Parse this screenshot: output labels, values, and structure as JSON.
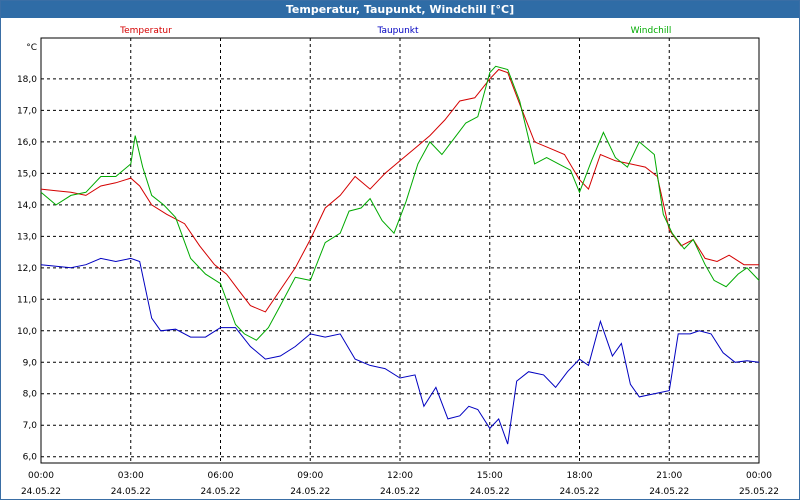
{
  "window": {
    "title": "Temperatur, Taupunkt, Windchill [°C]"
  },
  "chart_data": {
    "type": "line",
    "title": "Temperatur, Taupunkt, Windchill [°C]",
    "ylabel": "°C",
    "ylim": [
      5.8,
      19.3
    ],
    "xlim": [
      0,
      24
    ],
    "grid": true,
    "y_ticks": [
      "6,0",
      "7,0",
      "8,0",
      "9,0",
      "10,0",
      "11,0",
      "12,0",
      "13,0",
      "14,0",
      "15,0",
      "16,0",
      "17,0",
      "18,0"
    ],
    "x_ticks": [
      {
        "time": "00:00",
        "date": "24.05.22"
      },
      {
        "time": "03:00",
        "date": "24.05.22"
      },
      {
        "time": "06:00",
        "date": "24.05.22"
      },
      {
        "time": "09:00",
        "date": "24.05.22"
      },
      {
        "time": "12:00",
        "date": "24.05.22"
      },
      {
        "time": "15:00",
        "date": "24.05.22"
      },
      {
        "time": "18:00",
        "date": "24.05.22"
      },
      {
        "time": "21:00",
        "date": "24.05.22"
      },
      {
        "time": "00:00",
        "date": "25.05.22"
      }
    ],
    "series": [
      {
        "name": "Temperatur",
        "color": "#d40000",
        "points": [
          [
            0,
            14.5
          ],
          [
            0.5,
            14.45
          ],
          [
            1,
            14.4
          ],
          [
            1.5,
            14.3
          ],
          [
            2,
            14.6
          ],
          [
            2.5,
            14.7
          ],
          [
            3,
            14.85
          ],
          [
            3.3,
            14.6
          ],
          [
            3.7,
            14.0
          ],
          [
            4.2,
            13.7
          ],
          [
            4.8,
            13.4
          ],
          [
            5.3,
            12.7
          ],
          [
            5.8,
            12.1
          ],
          [
            6.2,
            11.8
          ],
          [
            6.6,
            11.3
          ],
          [
            7.0,
            10.8
          ],
          [
            7.5,
            10.6
          ],
          [
            8.0,
            11.3
          ],
          [
            8.5,
            12.0
          ],
          [
            9.0,
            12.9
          ],
          [
            9.5,
            13.9
          ],
          [
            10.0,
            14.3
          ],
          [
            10.5,
            14.9
          ],
          [
            11.0,
            14.5
          ],
          [
            11.5,
            15.0
          ],
          [
            12.0,
            15.4
          ],
          [
            12.5,
            15.8
          ],
          [
            13.0,
            16.2
          ],
          [
            13.5,
            16.7
          ],
          [
            14.0,
            17.3
          ],
          [
            14.5,
            17.4
          ],
          [
            15.0,
            18.0
          ],
          [
            15.3,
            18.3
          ],
          [
            15.6,
            18.2
          ],
          [
            16.0,
            17.2
          ],
          [
            16.5,
            16.0
          ],
          [
            17.0,
            15.8
          ],
          [
            17.5,
            15.6
          ],
          [
            18.0,
            14.8
          ],
          [
            18.3,
            14.5
          ],
          [
            18.7,
            15.6
          ],
          [
            19.2,
            15.4
          ],
          [
            19.7,
            15.3
          ],
          [
            20.2,
            15.2
          ],
          [
            20.6,
            14.9
          ],
          [
            21.0,
            13.2
          ],
          [
            21.4,
            12.7
          ],
          [
            21.8,
            12.9
          ],
          [
            22.2,
            12.3
          ],
          [
            22.6,
            12.2
          ],
          [
            23.0,
            12.4
          ],
          [
            23.5,
            12.1
          ],
          [
            24,
            12.1
          ]
        ]
      },
      {
        "name": "Taupunkt",
        "color": "#0000c0",
        "points": [
          [
            0,
            12.1
          ],
          [
            0.5,
            12.05
          ],
          [
            1,
            12.0
          ],
          [
            1.5,
            12.1
          ],
          [
            2,
            12.3
          ],
          [
            2.5,
            12.2
          ],
          [
            3,
            12.3
          ],
          [
            3.3,
            12.2
          ],
          [
            3.7,
            10.4
          ],
          [
            4.0,
            10.0
          ],
          [
            4.5,
            10.05
          ],
          [
            5.0,
            9.8
          ],
          [
            5.5,
            9.8
          ],
          [
            6.0,
            10.1
          ],
          [
            6.5,
            10.1
          ],
          [
            7.0,
            9.5
          ],
          [
            7.5,
            9.1
          ],
          [
            8.0,
            9.2
          ],
          [
            8.5,
            9.5
          ],
          [
            9.0,
            9.9
          ],
          [
            9.5,
            9.8
          ],
          [
            10.0,
            9.9
          ],
          [
            10.5,
            9.1
          ],
          [
            11.0,
            8.9
          ],
          [
            11.5,
            8.8
          ],
          [
            12.0,
            8.5
          ],
          [
            12.5,
            8.6
          ],
          [
            12.8,
            7.6
          ],
          [
            13.2,
            8.2
          ],
          [
            13.6,
            7.2
          ],
          [
            14.0,
            7.3
          ],
          [
            14.3,
            7.6
          ],
          [
            14.6,
            7.5
          ],
          [
            15.0,
            6.9
          ],
          [
            15.3,
            7.2
          ],
          [
            15.6,
            6.4
          ],
          [
            15.9,
            8.4
          ],
          [
            16.3,
            8.7
          ],
          [
            16.8,
            8.6
          ],
          [
            17.2,
            8.2
          ],
          [
            17.6,
            8.7
          ],
          [
            18.0,
            9.1
          ],
          [
            18.3,
            8.9
          ],
          [
            18.7,
            10.3
          ],
          [
            19.1,
            9.2
          ],
          [
            19.4,
            9.6
          ],
          [
            19.7,
            8.3
          ],
          [
            20.0,
            7.9
          ],
          [
            20.5,
            8.0
          ],
          [
            21.0,
            8.1
          ],
          [
            21.3,
            9.9
          ],
          [
            21.7,
            9.9
          ],
          [
            22.0,
            10.0
          ],
          [
            22.4,
            9.9
          ],
          [
            22.8,
            9.3
          ],
          [
            23.2,
            9.0
          ],
          [
            23.6,
            9.05
          ],
          [
            24,
            9.0
          ]
        ]
      },
      {
        "name": "Windchill",
        "color": "#00aa00",
        "points": [
          [
            0,
            14.4
          ],
          [
            0.5,
            14.0
          ],
          [
            1,
            14.3
          ],
          [
            1.5,
            14.4
          ],
          [
            2,
            14.9
          ],
          [
            2.5,
            14.9
          ],
          [
            3,
            15.3
          ],
          [
            3.15,
            16.2
          ],
          [
            3.4,
            15.2
          ],
          [
            3.7,
            14.3
          ],
          [
            4.1,
            14.0
          ],
          [
            4.5,
            13.6
          ],
          [
            5.0,
            12.3
          ],
          [
            5.5,
            11.8
          ],
          [
            6.0,
            11.5
          ],
          [
            6.5,
            10.2
          ],
          [
            6.8,
            9.9
          ],
          [
            7.2,
            9.7
          ],
          [
            7.6,
            10.1
          ],
          [
            8.0,
            10.8
          ],
          [
            8.5,
            11.7
          ],
          [
            9.0,
            11.6
          ],
          [
            9.5,
            12.8
          ],
          [
            10.0,
            13.1
          ],
          [
            10.3,
            13.8
          ],
          [
            10.7,
            13.9
          ],
          [
            11.0,
            14.2
          ],
          [
            11.4,
            13.5
          ],
          [
            11.8,
            13.1
          ],
          [
            12.2,
            14.1
          ],
          [
            12.6,
            15.3
          ],
          [
            13.0,
            16.0
          ],
          [
            13.4,
            15.6
          ],
          [
            13.8,
            16.1
          ],
          [
            14.2,
            16.6
          ],
          [
            14.6,
            16.8
          ],
          [
            15.0,
            18.2
          ],
          [
            15.2,
            18.4
          ],
          [
            15.6,
            18.3
          ],
          [
            16.0,
            17.3
          ],
          [
            16.5,
            15.3
          ],
          [
            16.9,
            15.5
          ],
          [
            17.3,
            15.3
          ],
          [
            17.7,
            15.1
          ],
          [
            18.0,
            14.4
          ],
          [
            18.4,
            15.4
          ],
          [
            18.8,
            16.3
          ],
          [
            19.2,
            15.5
          ],
          [
            19.6,
            15.2
          ],
          [
            20.0,
            16.0
          ],
          [
            20.5,
            15.6
          ],
          [
            20.8,
            13.7
          ],
          [
            21.1,
            13.1
          ],
          [
            21.5,
            12.6
          ],
          [
            21.8,
            12.9
          ],
          [
            22.2,
            12.1
          ],
          [
            22.5,
            11.6
          ],
          [
            22.9,
            11.4
          ],
          [
            23.3,
            11.8
          ],
          [
            23.6,
            12.0
          ],
          [
            24,
            11.6
          ]
        ]
      }
    ]
  }
}
